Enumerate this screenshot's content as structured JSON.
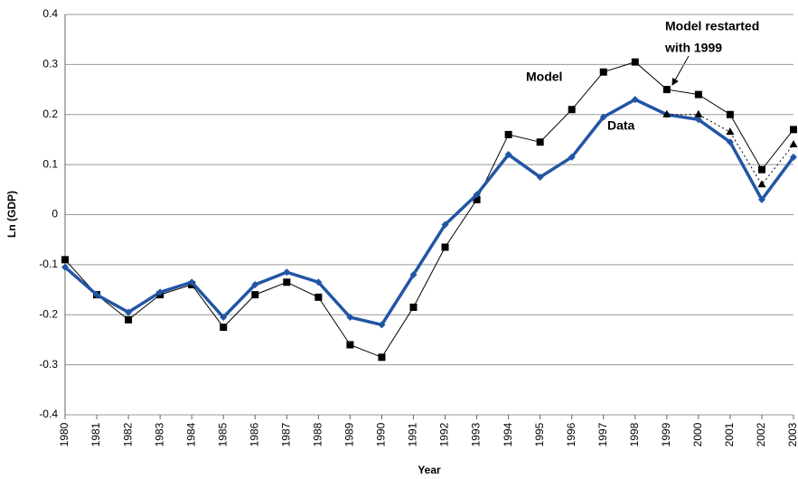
{
  "chart_data": {
    "type": "line",
    "y_label": "Ln (GDP)",
    "x_label": "Year",
    "categories": [
      "1980",
      "1981",
      "1982",
      "1983",
      "1984",
      "1985",
      "1986",
      "1987",
      "1988",
      "1989",
      "1990",
      "1991",
      "1992",
      "1993",
      "1994",
      "1995",
      "1996",
      "1997",
      "1998",
      "1999",
      "2000",
      "2001",
      "2002",
      "2003"
    ],
    "series": [
      {
        "name": "Model",
        "color": "#000000",
        "marker": "square",
        "line": "solid",
        "values": [
          -0.09,
          -0.16,
          -0.21,
          -0.16,
          -0.14,
          -0.225,
          -0.16,
          -0.135,
          -0.165,
          -0.26,
          -0.285,
          -0.185,
          -0.065,
          0.03,
          0.16,
          0.145,
          0.21,
          0.285,
          0.305,
          0.25,
          0.24,
          0.2,
          0.09,
          0.17
        ]
      },
      {
        "name": "Data",
        "color": "#2255a4",
        "marker": "diamond",
        "line": "thick",
        "values": [
          -0.105,
          -0.16,
          -0.195,
          -0.155,
          -0.135,
          -0.205,
          -0.14,
          -0.115,
          -0.135,
          -0.205,
          -0.22,
          -0.12,
          -0.02,
          0.04,
          0.12,
          0.075,
          0.115,
          0.195,
          0.23,
          0.2,
          0.19,
          0.145,
          0.03,
          0.115
        ]
      },
      {
        "color": "#000000",
        "marker": "triangle",
        "line": "dotted",
        "values": [
          null,
          null,
          null,
          null,
          null,
          null,
          null,
          null,
          null,
          null,
          null,
          null,
          null,
          null,
          null,
          null,
          null,
          null,
          null,
          0.2,
          0.2,
          0.165,
          0.06,
          0.14
        ]
      }
    ],
    "annotation_lines": [
      "Model restarted",
      "with 1999"
    ],
    "ylim": [
      -0.4,
      0.4
    ],
    "yticks": [
      -0.4,
      -0.3,
      -0.2,
      -0.1,
      0,
      0.1,
      0.2,
      0.3,
      0.4
    ],
    "grid": true
  }
}
